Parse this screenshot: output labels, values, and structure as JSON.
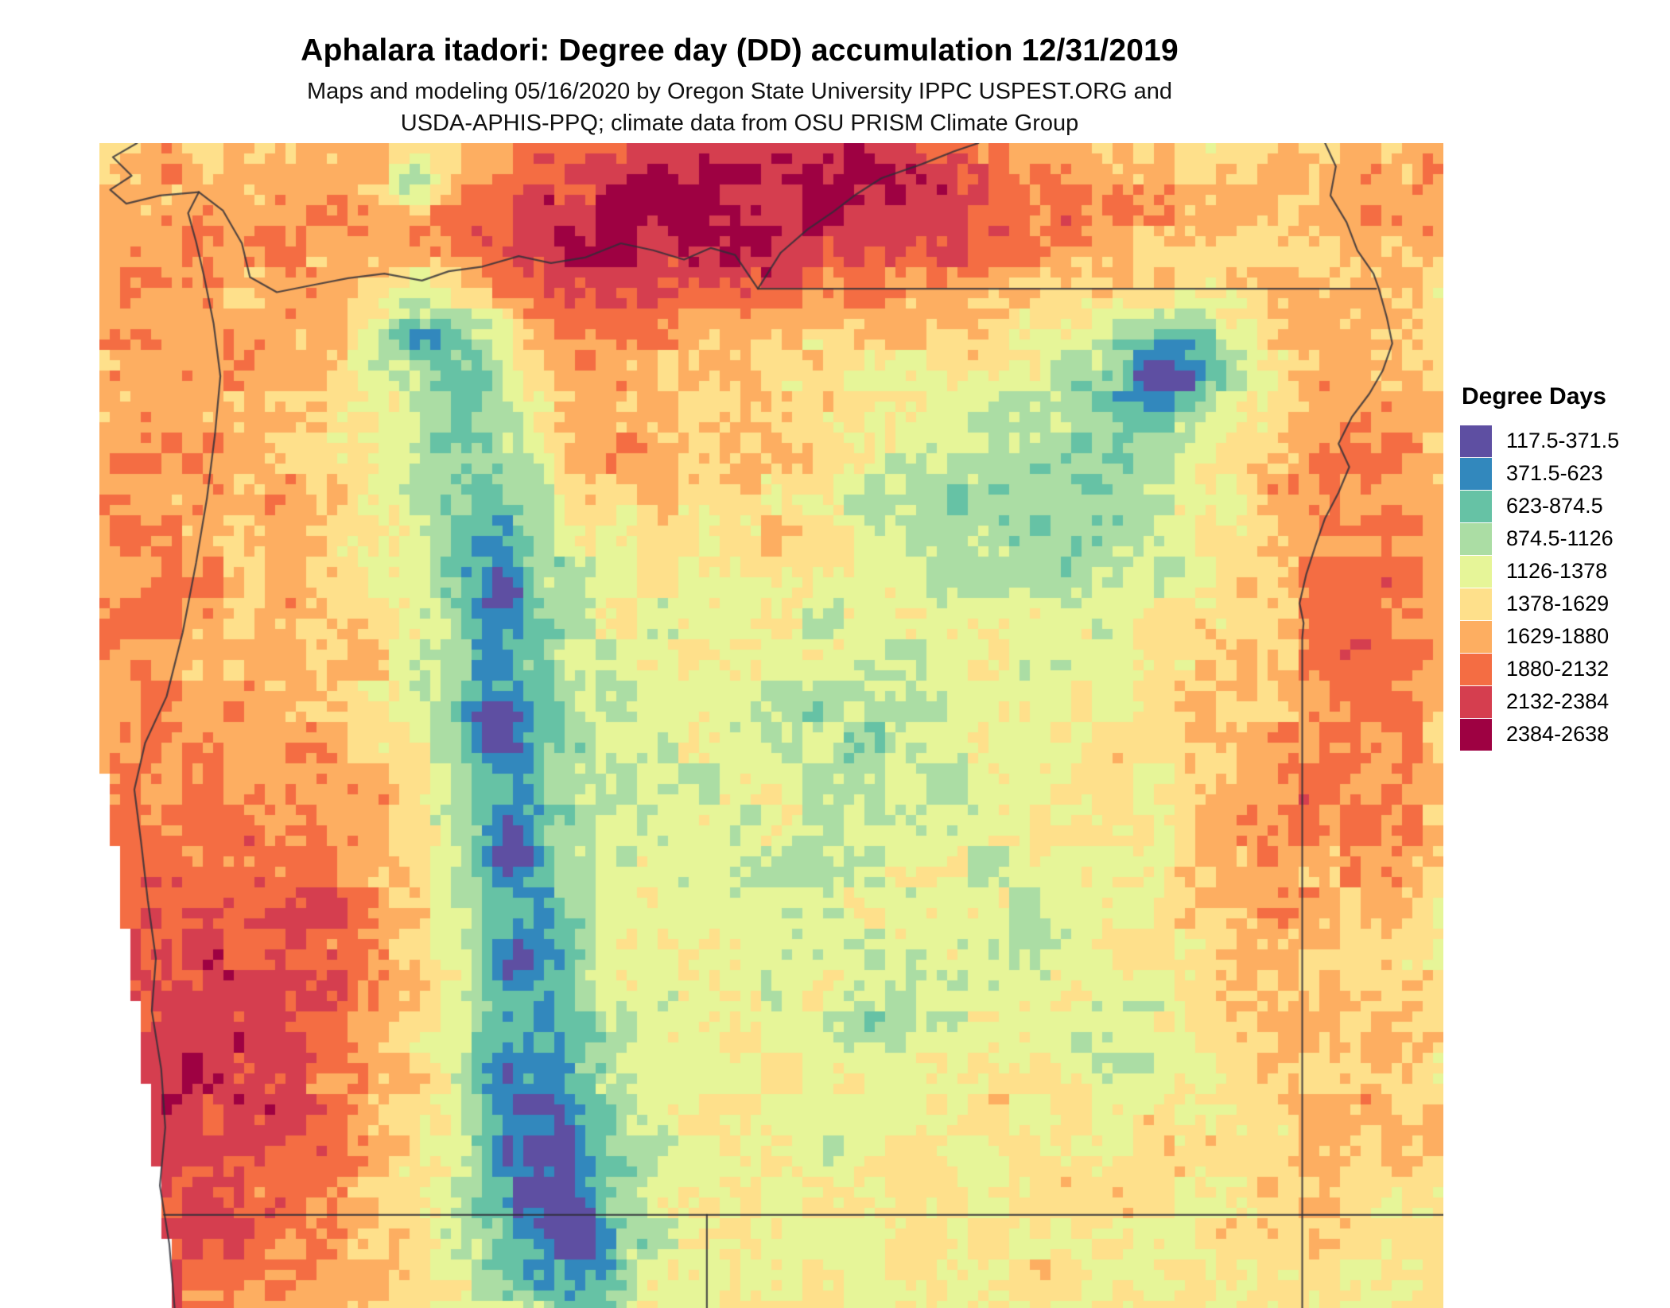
{
  "title": "Aphalara itadori: Degree day (DD) accumulation 12/31/2019",
  "subtitle": {
    "line1": "Maps and modeling 05/16/2020 by Oregon State University IPPC USPEST.ORG and",
    "line2": "USDA-APHIS-PPQ; climate data from OSU PRISM Climate Group"
  },
  "legend": {
    "title": "Degree Days",
    "entries": [
      {
        "label": "117.5-371.5",
        "color": "#5e4fa2"
      },
      {
        "label": "371.5-623",
        "color": "#3288bd"
      },
      {
        "label": "623-874.5",
        "color": "#66c2a5"
      },
      {
        "label": "874.5-1126",
        "color": "#abdda4"
      },
      {
        "label": "1126-1378",
        "color": "#e6f598"
      },
      {
        "label": "1378-1629",
        "color": "#fee08b"
      },
      {
        "label": "1629-1880",
        "color": "#fdae61"
      },
      {
        "label": "1880-2132",
        "color": "#f46d43"
      },
      {
        "label": "2132-2384",
        "color": "#d53e4f"
      },
      {
        "label": "2384-2638",
        "color": "#9e0142"
      }
    ]
  },
  "map": {
    "breaks": [
      117.5,
      371.5,
      623,
      874.5,
      1126,
      1378,
      1629,
      1880,
      2132,
      2384,
      2638
    ],
    "boundary_color": "#2e2e38",
    "ocean_color": "#ffffff"
  }
}
